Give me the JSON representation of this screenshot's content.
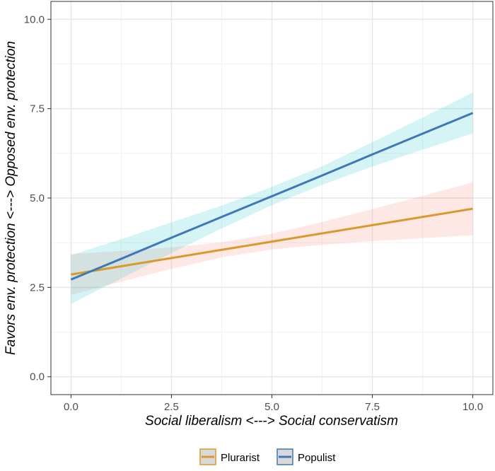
{
  "chart_data": {
    "type": "line",
    "xlabel": "Social liberalism <---> Social conservatism",
    "ylabel": "Favors env. protection <---> Opposed env. protection",
    "xlim": [
      -0.5,
      10.5
    ],
    "ylim": [
      -0.5,
      10.5
    ],
    "x_ticks": [
      "0.0",
      "2.5",
      "5.0",
      "7.5",
      "10.0"
    ],
    "y_ticks": [
      "0.0",
      "2.5",
      "5.0",
      "7.5",
      "10.0"
    ],
    "grid": true,
    "legend_position": "bottom",
    "x": [
      0,
      1.25,
      2.5,
      3.75,
      5,
      6.25,
      7.5,
      8.75,
      10
    ],
    "series": [
      {
        "name": "Plurarist",
        "line_color": "#d99a2b",
        "band_color": "#f8766d",
        "values": [
          2.86,
          3.09,
          3.32,
          3.55,
          3.78,
          4.01,
          4.24,
          4.47,
          4.7
        ],
        "lower": [
          2.29,
          2.66,
          3.02,
          3.34,
          3.56,
          3.69,
          3.79,
          3.88,
          3.96
        ],
        "upper": [
          3.43,
          3.52,
          3.62,
          3.76,
          4.0,
          4.33,
          4.69,
          5.06,
          5.44
        ]
      },
      {
        "name": "Populist",
        "line_color": "#3f78b6",
        "band_color": "#00bfc4",
        "values": [
          2.72,
          3.3,
          3.89,
          4.47,
          5.05,
          5.63,
          6.22,
          6.8,
          7.38
        ],
        "lower": [
          2.04,
          2.75,
          3.46,
          4.15,
          4.8,
          5.37,
          5.88,
          6.35,
          6.81
        ],
        "upper": [
          3.4,
          3.85,
          4.32,
          4.79,
          5.31,
          5.89,
          6.56,
          7.25,
          7.95
        ]
      }
    ]
  }
}
